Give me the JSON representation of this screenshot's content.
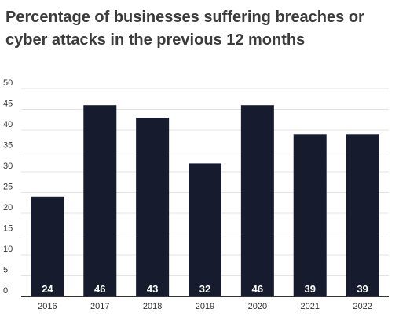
{
  "chart_data": {
    "type": "bar",
    "title": "Percentage of businesses suffering breaches or cyber attacks in the previous 12 months",
    "categories": [
      "2016",
      "2017",
      "2018",
      "2019",
      "2020",
      "2021",
      "2022"
    ],
    "values": [
      24,
      46,
      43,
      32,
      46,
      39,
      39
    ],
    "data_labels": [
      "24",
      "46",
      "43",
      "32",
      "46",
      "39",
      "39"
    ],
    "y_ticks": [
      "0",
      "5",
      "10",
      "15",
      "20",
      "25",
      "30",
      "35",
      "40",
      "45",
      "50"
    ],
    "xlabel": "",
    "ylabel": "",
    "ylim": [
      0,
      50
    ],
    "grid": true,
    "legend": "none",
    "colors": {
      "bar": "#161b2e",
      "grid": "#e3e3e3",
      "axis": "#333333",
      "title": "#3b3b3b"
    }
  }
}
